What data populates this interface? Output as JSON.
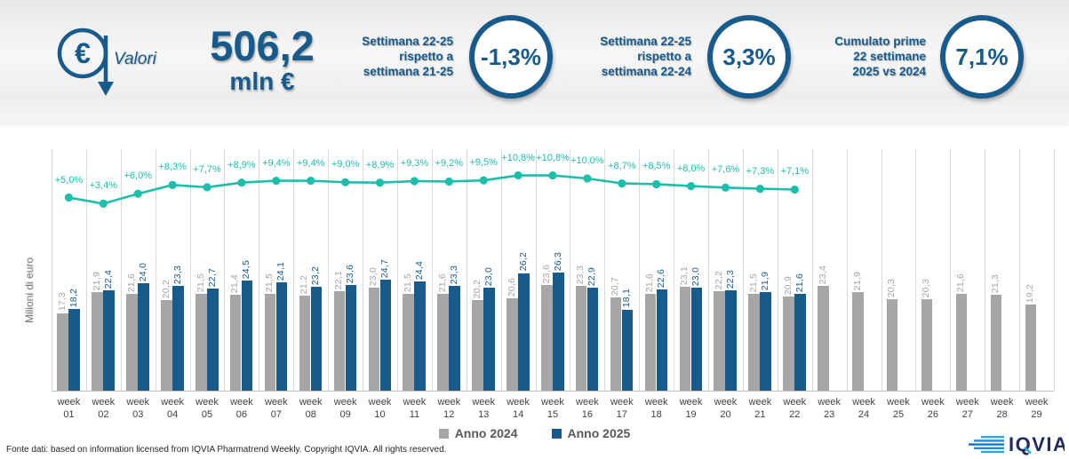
{
  "header": {
    "icon_label": "Valori",
    "total_value": "506,2",
    "total_unit": "mln €",
    "kpis": [
      {
        "label_lines": [
          "Settimana 22-25",
          "rispetto a",
          "settimana 21-25"
        ],
        "value": "-1,3%"
      },
      {
        "label_lines": [
          "Settimana 22-25",
          "rispetto a",
          "settimana 22-24"
        ],
        "value": "3,3%"
      },
      {
        "label_lines": [
          "Cumulato prime",
          "22 settimane",
          "2025 vs 2024"
        ],
        "value": "7,1%"
      }
    ]
  },
  "chart_data": {
    "type": "bar",
    "title": "",
    "ylabel": "Milioni di euro",
    "xlabel": "",
    "ylim": [
      0,
      30
    ],
    "grid": "vertical",
    "y_axis_visible": false,
    "legend_position": "bottom",
    "categories": [
      "week 01",
      "week 02",
      "week 03",
      "week 04",
      "week 05",
      "week 06",
      "week 07",
      "week 08",
      "week 09",
      "week 10",
      "week 11",
      "week 12",
      "week 13",
      "week 14",
      "week 15",
      "week 16",
      "week 17",
      "week 18",
      "week 19",
      "week 20",
      "week 21",
      "week 22",
      "week 23",
      "week 24",
      "week 25",
      "week 26",
      "week 27",
      "week 28",
      "week 29"
    ],
    "series": [
      {
        "name": "Anno 2024",
        "color": "#a6a6a6",
        "values": [
          17.3,
          21.9,
          21.6,
          20.2,
          21.5,
          21.4,
          21.5,
          21.2,
          22.1,
          23.0,
          21.5,
          21.6,
          20.2,
          20.6,
          23.6,
          23.3,
          20.7,
          21.6,
          23.1,
          22.2,
          21.5,
          20.9,
          23.4,
          21.9,
          20.3,
          20.3,
          21.6,
          21.3,
          19.2
        ]
      },
      {
        "name": "Anno 2025",
        "color": "#175a8c",
        "values": [
          18.2,
          22.4,
          24.0,
          23.3,
          22.7,
          24.5,
          24.1,
          23.2,
          23.6,
          24.7,
          24.4,
          23.3,
          23.0,
          26.2,
          26.3,
          22.9,
          18.1,
          22.6,
          23.0,
          22.3,
          21.9,
          21.6,
          null,
          null,
          null,
          null,
          null,
          null,
          null
        ]
      }
    ],
    "line_series": {
      "color": "#1cbfac",
      "values": [
        5.0,
        3.4,
        6.0,
        8.3,
        7.7,
        8.9,
        9.4,
        9.4,
        9.0,
        8.9,
        9.3,
        9.2,
        9.5,
        10.8,
        10.8,
        10.0,
        8.7,
        8.5,
        8.0,
        7.6,
        7.3,
        7.1
      ],
      "labels": [
        "+5,0%",
        "+3,4%",
        "+6,0%",
        "+8,3%",
        "+7,7%",
        "+8,9%",
        "+9,4%",
        "+9,4%",
        "+9,0%",
        "+8,9%",
        "+9,3%",
        "+9,2%",
        "+9,5%",
        "+10,8%",
        "+10,8%",
        "+10,0%",
        "+8,7%",
        "+8,5%",
        "+8,0%",
        "+7,6%",
        "+7,3%",
        "+7,1%"
      ]
    }
  },
  "legend": [
    {
      "label": "Anno 2024",
      "color": "#a6a6a6"
    },
    {
      "label": "Anno 2025",
      "color": "#175a8c"
    }
  ],
  "footer": {
    "source": "Fonte dati: based on information licensed from IQVIA Pharmatrend Weekly. Copyright IQVIA. All rights reserved.",
    "logo_text": "IQVIA"
  },
  "colors": {
    "brand_blue": "#175a8c",
    "teal_line": "#1cbfac",
    "gray_bar": "#a6a6a6",
    "gridline": "#d9d9d9"
  }
}
